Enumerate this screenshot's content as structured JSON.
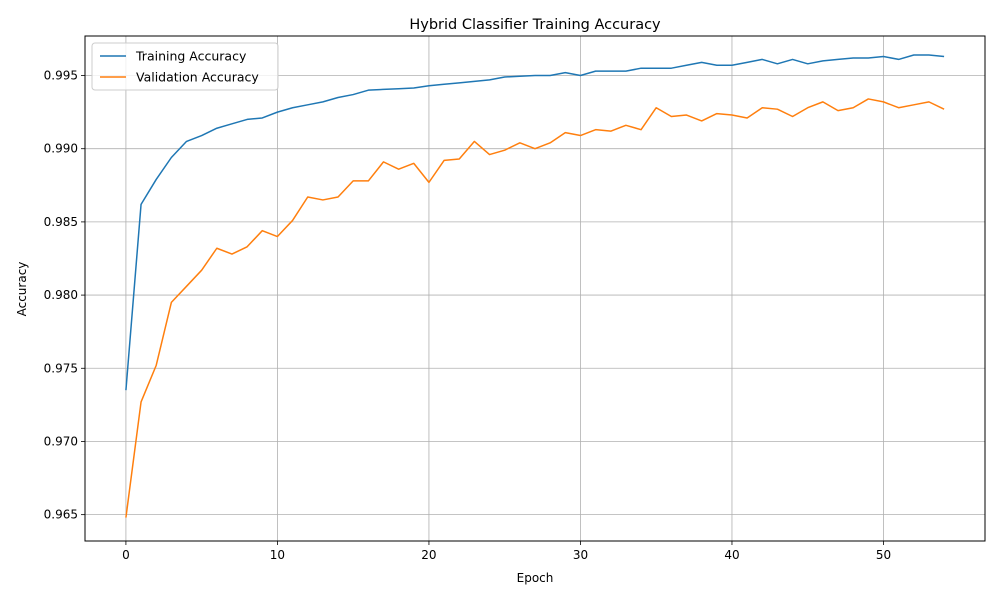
{
  "chart_data": {
    "type": "line",
    "title": "Hybrid Classifier Training Accuracy",
    "xlabel": "Epoch",
    "ylabel": "Accuracy",
    "xlim": [
      -2.7,
      56.7
    ],
    "ylim": [
      0.9632,
      0.9977
    ],
    "xticks": [
      0,
      10,
      20,
      30,
      40,
      50
    ],
    "yticks": [
      0.965,
      0.97,
      0.975,
      0.98,
      0.985,
      0.99,
      0.995
    ],
    "ytick_labels": [
      "0.965",
      "0.970",
      "0.975",
      "0.980",
      "0.985",
      "0.990",
      "0.995"
    ],
    "grid": true,
    "legend_position": "top-left",
    "x": [
      0,
      1,
      2,
      3,
      4,
      5,
      6,
      7,
      8,
      9,
      10,
      11,
      12,
      13,
      14,
      15,
      16,
      17,
      18,
      19,
      20,
      21,
      22,
      23,
      24,
      25,
      26,
      27,
      28,
      29,
      30,
      31,
      32,
      33,
      34,
      35,
      36,
      37,
      38,
      39,
      40,
      41,
      42,
      43,
      44,
      45,
      46,
      47,
      48,
      49,
      50,
      51,
      52,
      53,
      54
    ],
    "series": [
      {
        "name": "Training Accuracy",
        "color": "#1f77b4",
        "values": [
          0.9735,
          0.9862,
          0.9879,
          0.9894,
          0.9905,
          0.9909,
          0.9914,
          0.9917,
          0.992,
          0.9921,
          0.9925,
          0.9928,
          0.993,
          0.9932,
          0.9935,
          0.9937,
          0.994,
          0.99405,
          0.9941,
          0.99415,
          0.9943,
          0.9944,
          0.9945,
          0.9946,
          0.9947,
          0.9949,
          0.99495,
          0.995,
          0.995,
          0.9952,
          0.995,
          0.9953,
          0.9953,
          0.9953,
          0.9955,
          0.9955,
          0.9955,
          0.9957,
          0.9959,
          0.9957,
          0.9957,
          0.9959,
          0.9961,
          0.9958,
          0.9961,
          0.9958,
          0.996,
          0.9961,
          0.9962,
          0.9962,
          0.9963,
          0.9961,
          0.9964,
          0.9964,
          0.9963
        ]
      },
      {
        "name": "Validation Accuracy",
        "color": "#ff7f0e",
        "values": [
          0.9648,
          0.9727,
          0.9752,
          0.9795,
          0.9806,
          0.9817,
          0.9832,
          0.9828,
          0.9833,
          0.9844,
          0.984,
          0.9851,
          0.9867,
          0.9865,
          0.9867,
          0.9878,
          0.9878,
          0.9891,
          0.9886,
          0.989,
          0.9877,
          0.9892,
          0.9893,
          0.9905,
          0.9896,
          0.9899,
          0.9904,
          0.99,
          0.9904,
          0.9911,
          0.9909,
          0.9913,
          0.9912,
          0.9916,
          0.9913,
          0.9928,
          0.9922,
          0.9923,
          0.9919,
          0.9924,
          0.9923,
          0.9921,
          0.9928,
          0.9927,
          0.9922,
          0.9928,
          0.9932,
          0.9926,
          0.9928,
          0.9934,
          0.9932,
          0.9928,
          0.993,
          0.9932,
          0.9927
        ]
      }
    ]
  }
}
